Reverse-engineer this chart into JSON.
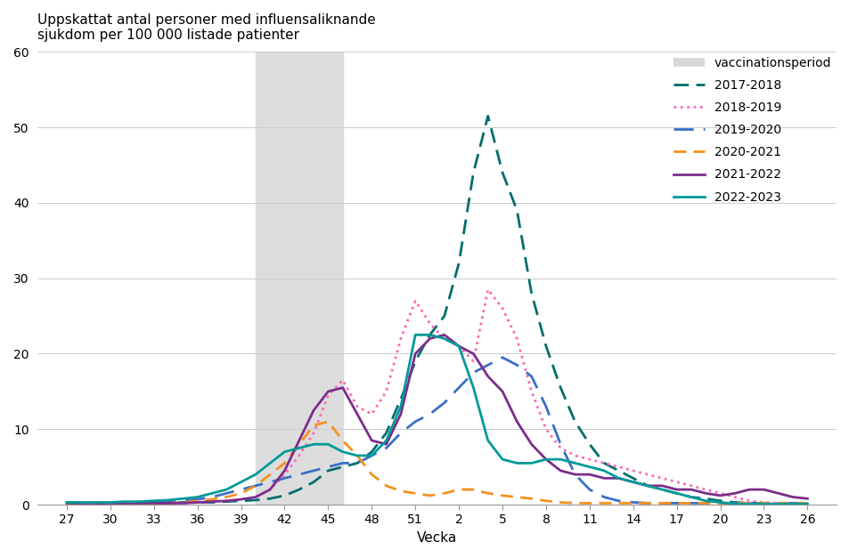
{
  "title": "Uppskattat antal personer med influensaliknande\nsjukdom per 100 000 listade patienter",
  "xlabel": "Vecka",
  "ylabel": "",
  "ylim": [
    0,
    60
  ],
  "yticks": [
    0,
    10,
    20,
    30,
    40,
    50,
    60
  ],
  "xtick_labels": [
    "27",
    "30",
    "33",
    "36",
    "39",
    "42",
    "45",
    "48",
    "51",
    "2",
    "5",
    "8",
    "11",
    "14",
    "17",
    "20",
    "23",
    "26"
  ],
  "xtick_positions": [
    0,
    3,
    6,
    9,
    12,
    15,
    18,
    21,
    24,
    27,
    30,
    33,
    36,
    39,
    42,
    45,
    48,
    51
  ],
  "xlim": [
    -2,
    53
  ],
  "vaccination_start": 13,
  "vaccination_end": 19,
  "background_color": "#ffffff",
  "series": [
    {
      "label": "2017-2018",
      "color": "#006d6d",
      "linestyle": "--",
      "dashes": [
        6,
        3
      ],
      "linewidth": 2.0,
      "x": [
        0,
        1,
        2,
        3,
        4,
        5,
        6,
        7,
        8,
        9,
        10,
        11,
        12,
        13,
        14,
        15,
        16,
        17,
        18,
        19,
        20,
        21,
        22,
        23,
        24,
        25,
        26,
        27,
        28,
        29,
        30,
        31,
        32,
        33,
        34,
        35,
        36,
        37,
        38,
        39,
        40,
        41,
        42,
        43,
        44,
        45,
        46,
        47,
        48,
        49,
        50,
        51
      ],
      "y": [
        0.3,
        0.2,
        0.2,
        0.2,
        0.2,
        0.2,
        0.2,
        0.2,
        0.3,
        0.3,
        0.3,
        0.4,
        0.5,
        0.6,
        0.8,
        1.2,
        2.0,
        3.0,
        4.5,
        5.0,
        5.5,
        7.0,
        9.5,
        14.0,
        19.0,
        22.5,
        25.0,
        32.0,
        44.0,
        51.5,
        44.0,
        39.0,
        28.0,
        21.0,
        15.5,
        11.0,
        8.0,
        5.5,
        4.5,
        3.5,
        2.5,
        2.0,
        1.5,
        1.0,
        0.8,
        0.5,
        0.3,
        0.2,
        0.2,
        0.1,
        0.1,
        0.1
      ]
    },
    {
      "label": "2018-2019",
      "color": "#ff69b4",
      "linestyle": ":",
      "dashes": null,
      "linewidth": 2.0,
      "x": [
        0,
        1,
        2,
        3,
        4,
        5,
        6,
        7,
        8,
        9,
        10,
        11,
        12,
        13,
        14,
        15,
        16,
        17,
        18,
        19,
        20,
        21,
        22,
        23,
        24,
        25,
        26,
        27,
        28,
        29,
        30,
        31,
        32,
        33,
        34,
        35,
        36,
        37,
        38,
        39,
        40,
        41,
        42,
        43,
        44,
        45,
        46,
        47,
        48,
        49,
        50,
        51
      ],
      "y": [
        0.2,
        0.2,
        0.2,
        0.2,
        0.2,
        0.2,
        0.2,
        0.2,
        0.2,
        0.3,
        0.4,
        0.5,
        0.7,
        1.0,
        2.0,
        4.0,
        6.5,
        9.5,
        14.5,
        16.5,
        13.0,
        12.0,
        15.0,
        22.0,
        27.0,
        24.0,
        22.0,
        21.0,
        19.0,
        28.5,
        26.0,
        22.0,
        15.0,
        10.0,
        7.5,
        6.5,
        6.0,
        5.5,
        5.0,
        4.5,
        4.0,
        3.5,
        3.0,
        2.5,
        2.0,
        1.5,
        1.0,
        0.5,
        0.3,
        0.2,
        0.1,
        0.1
      ]
    },
    {
      "label": "2019-2020",
      "color": "#3a6fc4",
      "linestyle": "--",
      "dashes": [
        8,
        4
      ],
      "linewidth": 2.0,
      "x": [
        0,
        1,
        2,
        3,
        4,
        5,
        6,
        7,
        8,
        9,
        10,
        11,
        12,
        13,
        14,
        15,
        16,
        17,
        18,
        19,
        20,
        21,
        22,
        23,
        24,
        25,
        26,
        27,
        28,
        29,
        30,
        31,
        32,
        33,
        34,
        35,
        36,
        37,
        38,
        39,
        40,
        41,
        42,
        43,
        44,
        45,
        46,
        47,
        48,
        49,
        50,
        51
      ],
      "y": [
        0.2,
        0.2,
        0.2,
        0.2,
        0.3,
        0.3,
        0.3,
        0.4,
        0.5,
        0.7,
        1.0,
        1.5,
        2.0,
        2.5,
        3.0,
        3.5,
        4.0,
        4.5,
        5.0,
        5.5,
        5.5,
        6.5,
        7.5,
        9.5,
        11.0,
        12.0,
        13.5,
        15.5,
        17.5,
        18.5,
        19.5,
        18.5,
        17.0,
        13.0,
        8.0,
        4.0,
        2.0,
        1.0,
        0.5,
        0.3,
        0.2,
        0.2,
        0.2,
        0.2,
        0.2,
        0.2,
        0.2,
        0.2,
        0.2,
        0.2,
        0.2,
        0.2
      ]
    },
    {
      "label": "2020-2021",
      "color": "#f5911e",
      "linestyle": "--",
      "dashes": [
        5,
        3
      ],
      "linewidth": 2.0,
      "x": [
        0,
        1,
        2,
        3,
        4,
        5,
        6,
        7,
        8,
        9,
        10,
        11,
        12,
        13,
        14,
        15,
        16,
        17,
        18,
        19,
        20,
        21,
        22,
        23,
        24,
        25,
        26,
        27,
        28,
        29,
        30,
        31,
        32,
        33,
        34,
        35,
        36,
        37,
        38,
        39,
        40,
        41,
        42,
        43,
        44,
        45,
        46,
        47,
        48,
        49,
        50,
        51
      ],
      "y": [
        0.2,
        0.2,
        0.2,
        0.2,
        0.2,
        0.2,
        0.2,
        0.2,
        0.3,
        0.5,
        0.7,
        1.0,
        1.5,
        2.5,
        4.0,
        5.5,
        8.0,
        10.5,
        11.0,
        8.5,
        6.5,
        4.0,
        2.5,
        1.8,
        1.5,
        1.2,
        1.5,
        2.0,
        2.0,
        1.5,
        1.2,
        1.0,
        0.8,
        0.5,
        0.3,
        0.2,
        0.2,
        0.2,
        0.2,
        0.2,
        0.2,
        0.2,
        0.2,
        0.2,
        0.2,
        0.2,
        0.2,
        0.2,
        0.2,
        0.2,
        0.2,
        0.2
      ]
    },
    {
      "label": "2021-2022",
      "color": "#7b2d8b",
      "linestyle": "-",
      "dashes": null,
      "linewidth": 2.0,
      "x": [
        0,
        1,
        2,
        3,
        4,
        5,
        6,
        7,
        8,
        9,
        10,
        11,
        12,
        13,
        14,
        15,
        16,
        17,
        18,
        19,
        20,
        21,
        22,
        23,
        24,
        25,
        26,
        27,
        28,
        29,
        30,
        31,
        32,
        33,
        34,
        35,
        36,
        37,
        38,
        39,
        40,
        41,
        42,
        43,
        44,
        45,
        46,
        47,
        48,
        49,
        50,
        51
      ],
      "y": [
        0.2,
        0.2,
        0.2,
        0.2,
        0.2,
        0.2,
        0.2,
        0.2,
        0.2,
        0.3,
        0.4,
        0.5,
        0.7,
        1.0,
        2.0,
        4.5,
        8.5,
        12.5,
        15.0,
        15.5,
        12.0,
        8.5,
        8.0,
        12.0,
        20.0,
        22.0,
        22.5,
        21.0,
        20.0,
        17.0,
        15.0,
        11.0,
        8.0,
        6.0,
        4.5,
        4.0,
        4.0,
        3.5,
        3.5,
        3.0,
        2.5,
        2.5,
        2.0,
        2.0,
        1.5,
        1.2,
        1.5,
        2.0,
        2.0,
        1.5,
        1.0,
        0.8
      ]
    },
    {
      "label": "2022-2023",
      "color": "#009999",
      "linestyle": "-",
      "dashes": null,
      "linewidth": 2.0,
      "x": [
        0,
        1,
        2,
        3,
        4,
        5,
        6,
        7,
        8,
        9,
        10,
        11,
        12,
        13,
        14,
        15,
        16,
        17,
        18,
        19,
        20,
        21,
        22,
        23,
        24,
        25,
        26,
        27,
        28,
        29,
        30,
        31,
        32,
        33,
        34,
        35,
        36,
        37,
        38,
        39,
        40,
        41,
        42,
        43,
        44,
        45,
        46,
        47,
        48,
        49,
        50,
        51
      ],
      "y": [
        0.3,
        0.3,
        0.3,
        0.3,
        0.4,
        0.4,
        0.5,
        0.6,
        0.8,
        1.0,
        1.5,
        2.0,
        3.0,
        4.0,
        5.5,
        7.0,
        7.5,
        8.0,
        8.0,
        7.0,
        6.5,
        6.5,
        8.5,
        13.0,
        22.5,
        22.5,
        22.0,
        21.0,
        15.5,
        8.5,
        6.0,
        5.5,
        5.5,
        6.0,
        6.0,
        5.5,
        5.0,
        4.5,
        3.5,
        3.0,
        2.5,
        2.0,
        1.5,
        1.0,
        0.5,
        0.3,
        0.1,
        0.1,
        0.1,
        0.1,
        0.1,
        0.1
      ]
    }
  ]
}
